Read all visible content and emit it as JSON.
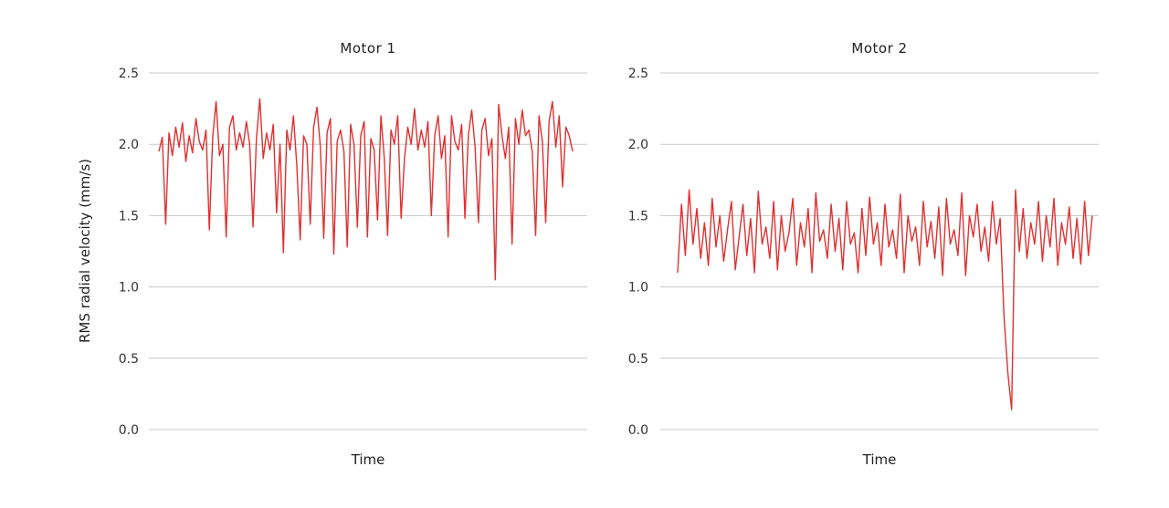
{
  "chart_data": [
    {
      "type": "line",
      "title": "Motor 1",
      "xlabel": "Time",
      "ylabel": "RMS radial velocity (mm/s)",
      "ylim": [
        0,
        2.5
      ],
      "yticks": [
        "0.0",
        "0.5",
        "1.0",
        "1.5",
        "2.0",
        "2.5"
      ],
      "grid": true,
      "color": "#e03030",
      "series": [
        {
          "values": [
            1.95,
            2.05,
            1.44,
            2.08,
            1.92,
            2.12,
            1.98,
            2.15,
            1.88,
            2.06,
            1.94,
            2.18,
            2.02,
            1.96,
            2.1,
            1.4,
            2.05,
            2.3,
            1.92,
            2.0,
            1.35,
            2.12,
            2.2,
            1.96,
            2.08,
            1.98,
            2.16,
            2.0,
            1.42,
            2.04,
            2.32,
            1.9,
            2.08,
            1.96,
            2.14,
            1.52,
            2.0,
            1.24,
            2.1,
            1.96,
            2.2,
            1.85,
            1.33,
            2.06,
            2.0,
            1.44,
            2.12,
            2.26,
            1.98,
            1.34,
            2.08,
            2.18,
            1.23,
            2.02,
            2.1,
            1.95,
            1.28,
            2.14,
            2.0,
            1.42,
            2.06,
            2.16,
            1.35,
            2.04,
            1.96,
            1.47,
            2.2,
            1.9,
            1.36,
            2.1,
            2.0,
            2.2,
            1.48,
            1.9,
            2.12,
            2.0,
            2.25,
            1.96,
            2.1,
            1.98,
            2.16,
            1.5,
            2.06,
            2.2,
            1.9,
            2.06,
            1.35,
            2.2,
            2.02,
            1.96,
            2.14,
            1.48,
            2.06,
            2.24,
            1.98,
            1.45,
            2.1,
            2.18,
            1.92,
            2.04,
            1.05,
            2.28,
            2.06,
            1.9,
            2.12,
            1.3,
            2.18,
            2.0,
            2.24,
            2.06,
            2.1,
            1.95,
            1.36,
            2.2,
            2.02,
            1.45,
            2.16,
            2.3,
            1.98,
            2.2,
            1.7,
            2.12,
            2.06,
            1.95
          ]
        }
      ]
    },
    {
      "type": "line",
      "title": "Motor 2",
      "xlabel": "Time",
      "ylabel": "",
      "ylim": [
        0,
        2.5
      ],
      "yticks": [
        "0.0",
        "0.5",
        "1.0",
        "1.5",
        "2.0",
        "2.5"
      ],
      "grid": true,
      "color": "#e03030",
      "series": [
        {
          "values": [
            1.1,
            1.58,
            1.22,
            1.68,
            1.3,
            1.55,
            1.2,
            1.45,
            1.15,
            1.62,
            1.28,
            1.5,
            1.18,
            1.4,
            1.6,
            1.12,
            1.35,
            1.58,
            1.22,
            1.48,
            1.1,
            1.67,
            1.3,
            1.42,
            1.2,
            1.6,
            1.12,
            1.5,
            1.25,
            1.38,
            1.62,
            1.15,
            1.45,
            1.28,
            1.55,
            1.1,
            1.66,
            1.32,
            1.4,
            1.2,
            1.58,
            1.25,
            1.48,
            1.12,
            1.6,
            1.3,
            1.38,
            1.1,
            1.55,
            1.22,
            1.63,
            1.3,
            1.45,
            1.15,
            1.58,
            1.28,
            1.4,
            1.2,
            1.65,
            1.1,
            1.5,
            1.32,
            1.42,
            1.15,
            1.6,
            1.28,
            1.46,
            1.2,
            1.56,
            1.08,
            1.62,
            1.3,
            1.4,
            1.22,
            1.66,
            1.08,
            1.5,
            1.35,
            1.58,
            1.25,
            1.42,
            1.18,
            1.6,
            1.3,
            1.48,
            0.8,
            0.4,
            0.14,
            1.68,
            1.25,
            1.55,
            1.2,
            1.45,
            1.3,
            1.6,
            1.18,
            1.5,
            1.28,
            1.62,
            1.15,
            1.45,
            1.3,
            1.56,
            1.2,
            1.48,
            1.16,
            1.6,
            1.22,
            1.5
          ]
        }
      ]
    }
  ]
}
